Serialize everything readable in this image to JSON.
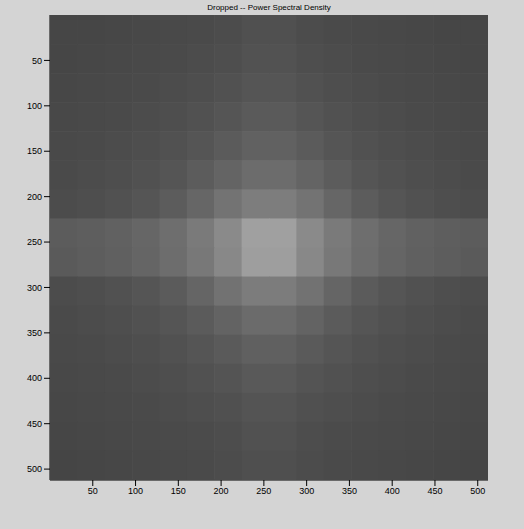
{
  "chart_data": {
    "type": "heatmap",
    "title": "Dropped -- Power Spectral Density",
    "xlim": [
      0,
      512
    ],
    "ylim": [
      512,
      0
    ],
    "xticks": [
      50,
      100,
      150,
      200,
      250,
      300,
      350,
      400,
      450,
      500
    ],
    "yticks": [
      50,
      100,
      150,
      200,
      250,
      300,
      350,
      400,
      450,
      500
    ],
    "x": [
      16,
      48,
      80,
      112,
      144,
      176,
      208,
      240,
      272,
      304,
      336,
      368,
      400,
      432,
      464,
      496
    ],
    "y": [
      16,
      48,
      80,
      112,
      144,
      176,
      208,
      240,
      272,
      304,
      336,
      368,
      400,
      432,
      464,
      496
    ],
    "cells": [
      [
        70,
        70,
        71,
        72,
        73,
        74,
        76,
        80,
        80,
        76,
        74,
        73,
        72,
        71,
        70,
        70
      ],
      [
        70,
        71,
        72,
        73,
        74,
        76,
        78,
        82,
        82,
        78,
        76,
        74,
        73,
        72,
        71,
        70
      ],
      [
        71,
        72,
        73,
        74,
        76,
        78,
        81,
        85,
        85,
        81,
        78,
        76,
        74,
        73,
        72,
        71
      ],
      [
        72,
        73,
        74,
        76,
        78,
        81,
        85,
        90,
        90,
        85,
        81,
        78,
        76,
        74,
        73,
        72
      ],
      [
        73,
        74,
        76,
        78,
        81,
        85,
        91,
        97,
        97,
        91,
        85,
        81,
        78,
        76,
        74,
        73
      ],
      [
        74,
        76,
        78,
        81,
        85,
        92,
        100,
        108,
        108,
        100,
        92,
        85,
        81,
        78,
        76,
        74
      ],
      [
        76,
        78,
        81,
        85,
        92,
        102,
        115,
        125,
        125,
        115,
        102,
        92,
        85,
        81,
        78,
        76
      ],
      [
        92,
        94,
        97,
        102,
        110,
        122,
        138,
        160,
        160,
        138,
        122,
        110,
        102,
        97,
        94,
        92
      ],
      [
        90,
        93,
        96,
        101,
        109,
        120,
        136,
        158,
        158,
        136,
        120,
        109,
        101,
        96,
        93,
        90
      ],
      [
        76,
        78,
        81,
        85,
        91,
        101,
        114,
        124,
        124,
        114,
        101,
        91,
        85,
        81,
        78,
        76
      ],
      [
        74,
        76,
        78,
        81,
        85,
        91,
        99,
        107,
        107,
        99,
        91,
        85,
        81,
        78,
        76,
        74
      ],
      [
        73,
        74,
        76,
        78,
        81,
        85,
        90,
        96,
        96,
        90,
        85,
        81,
        78,
        76,
        74,
        73
      ],
      [
        72,
        73,
        74,
        76,
        78,
        81,
        84,
        89,
        89,
        84,
        81,
        78,
        76,
        74,
        73,
        72
      ],
      [
        71,
        72,
        73,
        74,
        76,
        78,
        80,
        84,
        84,
        80,
        78,
        76,
        74,
        73,
        72,
        71
      ],
      [
        70,
        71,
        72,
        73,
        74,
        75,
        77,
        81,
        81,
        77,
        75,
        74,
        73,
        72,
        71,
        70
      ],
      [
        69,
        70,
        71,
        72,
        73,
        74,
        76,
        79,
        79,
        76,
        74,
        73,
        72,
        71,
        70,
        69
      ]
    ]
  }
}
